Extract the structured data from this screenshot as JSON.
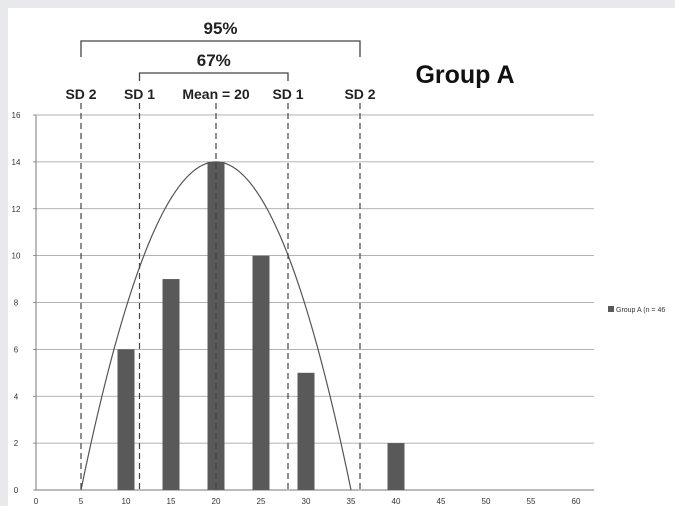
{
  "chart_data": {
    "type": "bar",
    "title": "Group A",
    "x_ticks": [
      "0",
      "5",
      "10",
      "15",
      "20",
      "25",
      "30",
      "35",
      "40",
      "45",
      "50",
      "55",
      "60"
    ],
    "y_ticks": [
      "0",
      "2",
      "4",
      "6",
      "8",
      "10",
      "12",
      "14",
      "16"
    ],
    "xlim": [
      0,
      62
    ],
    "ylim": [
      0,
      16
    ],
    "grid": true,
    "legend_position": "right",
    "series": [
      {
        "name": "Group A (n = 46",
        "color": "#595959",
        "points": [
          {
            "x": 10,
            "y": 6
          },
          {
            "x": 15,
            "y": 9
          },
          {
            "x": 20,
            "y": 14
          },
          {
            "x": 25,
            "y": 10
          },
          {
            "x": 30,
            "y": 5
          },
          {
            "x": 40,
            "y": 2
          }
        ]
      }
    ],
    "curve": {
      "type": "normal",
      "mean": 20,
      "peak": 14,
      "x_from": 5,
      "x_to": 35
    },
    "reference_lines": [
      {
        "x": 5,
        "label": "SD 2"
      },
      {
        "x": 11.5,
        "label": "SD  1"
      },
      {
        "x": 20,
        "label": "Mean = 20"
      },
      {
        "x": 28,
        "label": "SD 1"
      },
      {
        "x": 36,
        "label": "SD 2"
      }
    ],
    "brackets": [
      {
        "from": 5,
        "to": 36,
        "label": "95%"
      },
      {
        "from": 11.5,
        "to": 28,
        "label": "67%"
      }
    ]
  }
}
